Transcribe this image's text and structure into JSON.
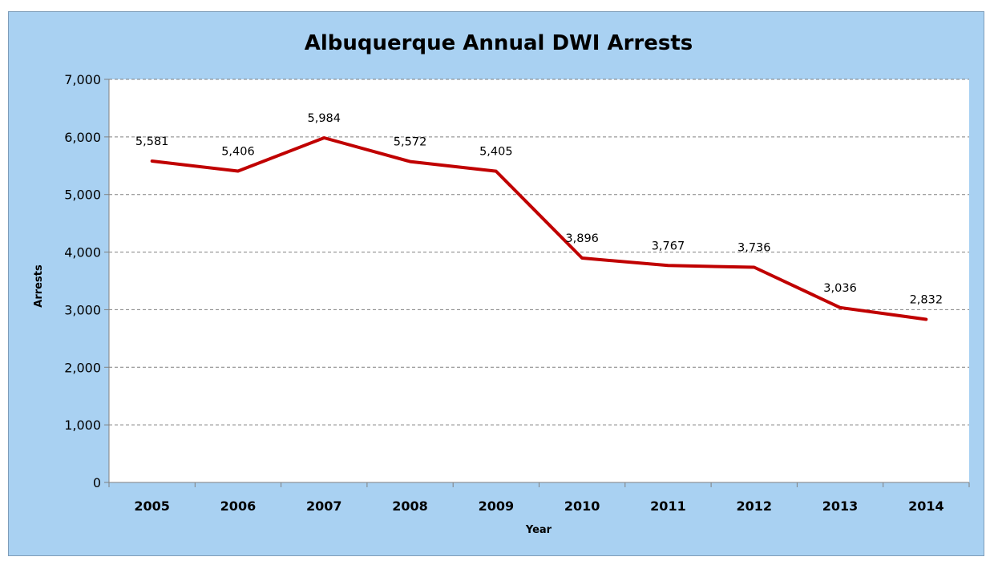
{
  "chart_data": {
    "type": "line",
    "title": "Albuquerque Annual DWI Arrests",
    "xlabel": "Year",
    "ylabel": "Arrests",
    "categories": [
      "2005",
      "2006",
      "2007",
      "2008",
      "2009",
      "2010",
      "2011",
      "2012",
      "2013",
      "2014"
    ],
    "series": [
      {
        "values": [
          5581,
          5406,
          5984,
          5572,
          5405,
          3896,
          3767,
          3736,
          3036,
          2832
        ],
        "labels": [
          "5,581",
          "5,406",
          "5,984",
          "5,572",
          "5,405",
          "3,896",
          "3,767",
          "3,736",
          "3,036",
          "2,832"
        ],
        "color": "#c00000"
      }
    ],
    "ylim": [
      0,
      7000
    ],
    "yticks": [
      0,
      1000,
      2000,
      3000,
      4000,
      5000,
      6000,
      7000
    ],
    "ytick_labels": [
      "0",
      "1,000",
      "2,000",
      "3,000",
      "4,000",
      "5,000",
      "6,000",
      "7,000"
    ],
    "grid": true,
    "colors": {
      "frame_background": "#a9d1f2",
      "plot_background": "#ffffff",
      "gridline": "#808080"
    }
  }
}
